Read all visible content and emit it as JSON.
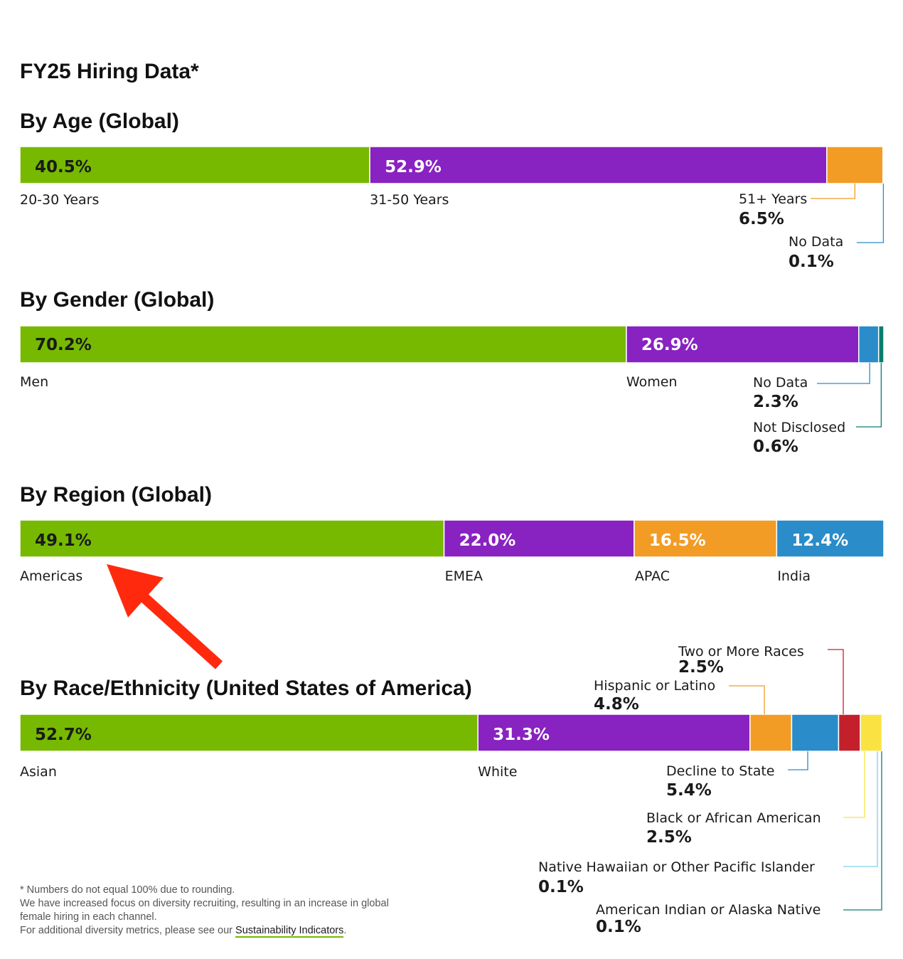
{
  "colors": {
    "green": "#76b900",
    "purple": "#8822c0",
    "orange": "#f29c26",
    "blue": "#2a8cc9",
    "red": "#c4202c",
    "yellow": "#fbe243",
    "teal": "#0b7d6e",
    "lightblue": "#7fd1e8",
    "arrow": "#ff2a0e"
  },
  "page": {
    "title": "FY25 Hiring Data*"
  },
  "chart_data": [
    {
      "type": "stacked-bar",
      "title": "By Age (Global)",
      "segments": [
        {
          "label": "20-30 Years",
          "value": 40.5,
          "display": "40.5%",
          "color": "green"
        },
        {
          "label": "31-50 Years",
          "value": 52.9,
          "display": "52.9%",
          "color": "purple"
        },
        {
          "label": "51+ Years",
          "value": 6.5,
          "display": "6.5%",
          "color": "orange"
        },
        {
          "label": "No Data",
          "value": 0.1,
          "display": "0.1%",
          "color": "blue"
        }
      ]
    },
    {
      "type": "stacked-bar",
      "title": "By Gender (Global)",
      "segments": [
        {
          "label": "Men",
          "value": 70.2,
          "display": "70.2%",
          "color": "green"
        },
        {
          "label": "Women",
          "value": 26.9,
          "display": "26.9%",
          "color": "purple"
        },
        {
          "label": "No Data",
          "value": 2.3,
          "display": "2.3%",
          "color": "blue"
        },
        {
          "label": "Not Disclosed",
          "value": 0.6,
          "display": "0.6%",
          "color": "teal"
        }
      ]
    },
    {
      "type": "stacked-bar",
      "title": "By Region (Global)",
      "segments": [
        {
          "label": "Americas",
          "value": 49.1,
          "display": "49.1%",
          "color": "green"
        },
        {
          "label": "EMEA",
          "value": 22.0,
          "display": "22.0%",
          "color": "purple"
        },
        {
          "label": "APAC",
          "value": 16.5,
          "display": "16.5%",
          "color": "orange"
        },
        {
          "label": "India",
          "value": 12.4,
          "display": "12.4%",
          "color": "blue"
        }
      ]
    },
    {
      "type": "stacked-bar",
      "title": "By Race/Ethnicity (United States of America)",
      "segments": [
        {
          "label": "Asian",
          "value": 52.7,
          "display": "52.7%",
          "color": "green"
        },
        {
          "label": "White",
          "value": 31.3,
          "display": "31.3%",
          "color": "purple"
        },
        {
          "label": "Hispanic or Latino",
          "value": 4.8,
          "display": "4.8%",
          "color": "orange"
        },
        {
          "label": "Decline to State",
          "value": 5.4,
          "display": "5.4%",
          "color": "blue"
        },
        {
          "label": "Two or More Races",
          "value": 2.5,
          "display": "2.5%",
          "color": "red"
        },
        {
          "label": "Black or African American",
          "value": 2.5,
          "display": "2.5%",
          "color": "yellow"
        },
        {
          "label": "Native Hawaiian or Other Pacific Islander",
          "value": 0.1,
          "display": "0.1%",
          "color": "lightblue"
        },
        {
          "label": "American Indian or Alaska Native",
          "value": 0.1,
          "display": "0.1%",
          "color": "teal"
        }
      ]
    }
  ],
  "footnotes": {
    "line1": "* Numbers do not equal 100% due to rounding.",
    "line2": "We have increased focus on diversity recruiting, resulting in an increase in global female hiring in each channel.",
    "line3_prefix": "For additional diversity metrics, please see our",
    "link": "Sustainability Indicators",
    "line3_suffix": "."
  }
}
